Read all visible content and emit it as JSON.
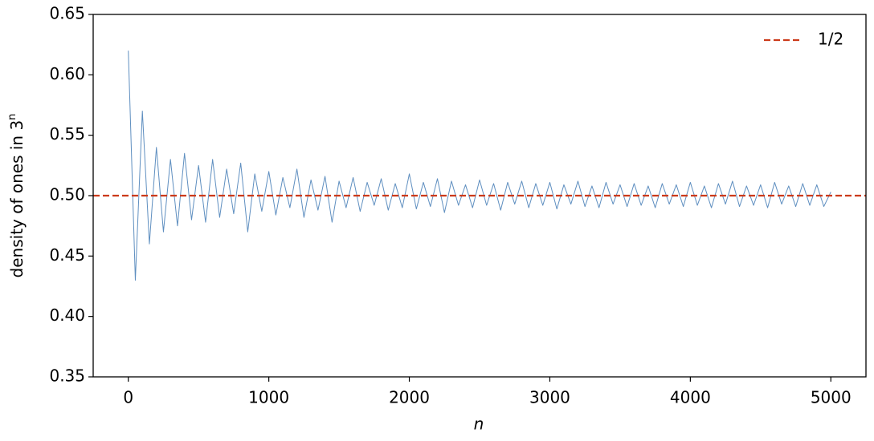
{
  "chart_data": {
    "type": "line",
    "ylabel": "density of ones in 3",
    "ylabel_sup": "n",
    "xlabel": "n",
    "x": [
      0,
      50,
      100,
      150,
      200,
      250,
      300,
      350,
      400,
      450,
      500,
      550,
      600,
      650,
      700,
      750,
      800,
      850,
      900,
      950,
      1000,
      1050,
      1100,
      1150,
      1200,
      1250,
      1300,
      1350,
      1400,
      1450,
      1500,
      1550,
      1600,
      1650,
      1700,
      1750,
      1800,
      1850,
      1900,
      1950,
      2000,
      2050,
      2100,
      2150,
      2200,
      2250,
      2300,
      2350,
      2400,
      2450,
      2500,
      2550,
      2600,
      2650,
      2700,
      2750,
      2800,
      2850,
      2900,
      2950,
      3000,
      3050,
      3100,
      3150,
      3200,
      3250,
      3300,
      3350,
      3400,
      3450,
      3500,
      3550,
      3600,
      3650,
      3700,
      3750,
      3800,
      3850,
      3900,
      3950,
      4000,
      4050,
      4100,
      4150,
      4200,
      4250,
      4300,
      4350,
      4400,
      4450,
      4500,
      4550,
      4600,
      4650,
      4700,
      4750,
      4800,
      4850,
      4900,
      4950,
      5000
    ],
    "series": [
      {
        "color": "#5f8fc0",
        "values": [
          0.62,
          0.43,
          0.57,
          0.46,
          0.54,
          0.47,
          0.53,
          0.475,
          0.535,
          0.48,
          0.525,
          0.478,
          0.53,
          0.482,
          0.522,
          0.485,
          0.527,
          0.47,
          0.518,
          0.487,
          0.52,
          0.484,
          0.515,
          0.49,
          0.522,
          0.482,
          0.513,
          0.488,
          0.516,
          0.478,
          0.512,
          0.49,
          0.515,
          0.487,
          0.511,
          0.492,
          0.514,
          0.488,
          0.51,
          0.49,
          0.518,
          0.489,
          0.511,
          0.491,
          0.514,
          0.486,
          0.512,
          0.492,
          0.509,
          0.49,
          0.513,
          0.492,
          0.51,
          0.488,
          0.511,
          0.493,
          0.512,
          0.49,
          0.51,
          0.492,
          0.511,
          0.489,
          0.509,
          0.493,
          0.512,
          0.491,
          0.508,
          0.49,
          0.511,
          0.493,
          0.509,
          0.491,
          0.51,
          0.492,
          0.508,
          0.49,
          0.51,
          0.493,
          0.509,
          0.491,
          0.511,
          0.492,
          0.508,
          0.49,
          0.51,
          0.493,
          0.512,
          0.491,
          0.508,
          0.492,
          0.509,
          0.49,
          0.511,
          0.493,
          0.508,
          0.491,
          0.51,
          0.492,
          0.509,
          0.491,
          0.503
        ]
      }
    ],
    "reference": {
      "value": 0.5,
      "label": "1/2",
      "color": "#cc3a1a"
    },
    "legend": "upper right",
    "xlim": [
      -250,
      5250
    ],
    "ylim": [
      0.35,
      0.65
    ],
    "xticks": [
      0,
      1000,
      2000,
      3000,
      4000,
      5000
    ],
    "yticks": [
      0.35,
      {
        "value": 0.4,
        "label": "0.40"
      },
      0.45,
      {
        "value": 0.5,
        "label": "0.50"
      },
      0.55,
      {
        "value": 0.6,
        "label": "0.60"
      },
      0.65
    ]
  }
}
